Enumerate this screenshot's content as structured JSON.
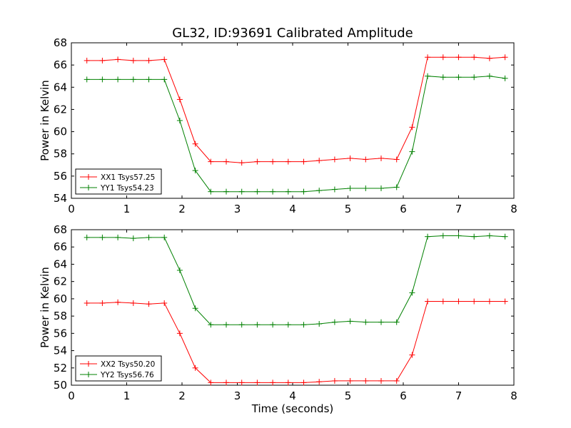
{
  "figure_title": "GL32, ID:93691 Calibrated Amplitude",
  "chart_data": [
    {
      "type": "line",
      "title": "GL32, ID:93691 Calibrated Amplitude",
      "xlabel": "",
      "ylabel": "Power in Kelvin",
      "xlim": [
        0,
        8
      ],
      "ylim": [
        54,
        68
      ],
      "xticks": [
        "0",
        "1",
        "2",
        "3",
        "4",
        "5",
        "6",
        "7",
        "8"
      ],
      "yticks": [
        "54",
        "56",
        "58",
        "60",
        "62",
        "64",
        "66",
        "68"
      ],
      "grid": false,
      "legend_position": "lower-left",
      "x": [
        0.28,
        0.56,
        0.84,
        1.12,
        1.4,
        1.68,
        1.96,
        2.24,
        2.52,
        2.8,
        3.08,
        3.36,
        3.64,
        3.92,
        4.2,
        4.48,
        4.76,
        5.04,
        5.32,
        5.6,
        5.88,
        6.16,
        6.44,
        6.72,
        7.0,
        7.28,
        7.56,
        7.84
      ],
      "series": [
        {
          "name": "XX1 Tsys57.25",
          "color": "#ff0000",
          "values": [
            66.4,
            66.4,
            66.5,
            66.4,
            66.4,
            66.5,
            62.9,
            58.9,
            57.3,
            57.3,
            57.2,
            57.3,
            57.3,
            57.3,
            57.3,
            57.4,
            57.5,
            57.6,
            57.5,
            57.6,
            57.5,
            60.4,
            66.7,
            66.7,
            66.7,
            66.7,
            66.6,
            66.7
          ]
        },
        {
          "name": "YY1 Tsys54.23",
          "color": "#008000",
          "values": [
            64.7,
            64.7,
            64.7,
            64.7,
            64.7,
            64.7,
            61.0,
            56.5,
            54.6,
            54.6,
            54.6,
            54.6,
            54.6,
            54.6,
            54.6,
            54.7,
            54.8,
            54.9,
            54.9,
            54.9,
            55.0,
            58.2,
            65.0,
            64.9,
            64.9,
            64.9,
            65.0,
            64.8
          ]
        }
      ]
    },
    {
      "type": "line",
      "title": "",
      "xlabel": "Time (seconds)",
      "ylabel": "Power in Kelvin",
      "xlim": [
        0,
        8
      ],
      "ylim": [
        50,
        68
      ],
      "xticks": [
        "0",
        "1",
        "2",
        "3",
        "4",
        "5",
        "6",
        "7",
        "8"
      ],
      "yticks": [
        "50",
        "52",
        "54",
        "56",
        "58",
        "60",
        "62",
        "64",
        "66",
        "68"
      ],
      "grid": false,
      "legend_position": "lower-left",
      "x": [
        0.28,
        0.56,
        0.84,
        1.12,
        1.4,
        1.68,
        1.96,
        2.24,
        2.52,
        2.8,
        3.08,
        3.36,
        3.64,
        3.92,
        4.2,
        4.48,
        4.76,
        5.04,
        5.32,
        5.6,
        5.88,
        6.16,
        6.44,
        6.72,
        7.0,
        7.28,
        7.56,
        7.84
      ],
      "series": [
        {
          "name": "XX2 Tsys50.20",
          "color": "#ff0000",
          "values": [
            59.5,
            59.5,
            59.6,
            59.5,
            59.4,
            59.5,
            56.0,
            52.0,
            50.3,
            50.3,
            50.3,
            50.3,
            50.3,
            50.3,
            50.3,
            50.4,
            50.5,
            50.5,
            50.5,
            50.5,
            50.5,
            53.5,
            59.7,
            59.7,
            59.7,
            59.7,
            59.7,
            59.7
          ]
        },
        {
          "name": "YY2 Tsys56.76",
          "color": "#008000",
          "values": [
            67.1,
            67.1,
            67.1,
            67.0,
            67.1,
            67.1,
            63.3,
            58.9,
            57.0,
            57.0,
            57.0,
            57.0,
            57.0,
            57.0,
            57.0,
            57.1,
            57.3,
            57.4,
            57.3,
            57.3,
            57.3,
            60.7,
            67.2,
            67.3,
            67.3,
            67.2,
            67.3,
            67.2
          ]
        }
      ]
    }
  ]
}
